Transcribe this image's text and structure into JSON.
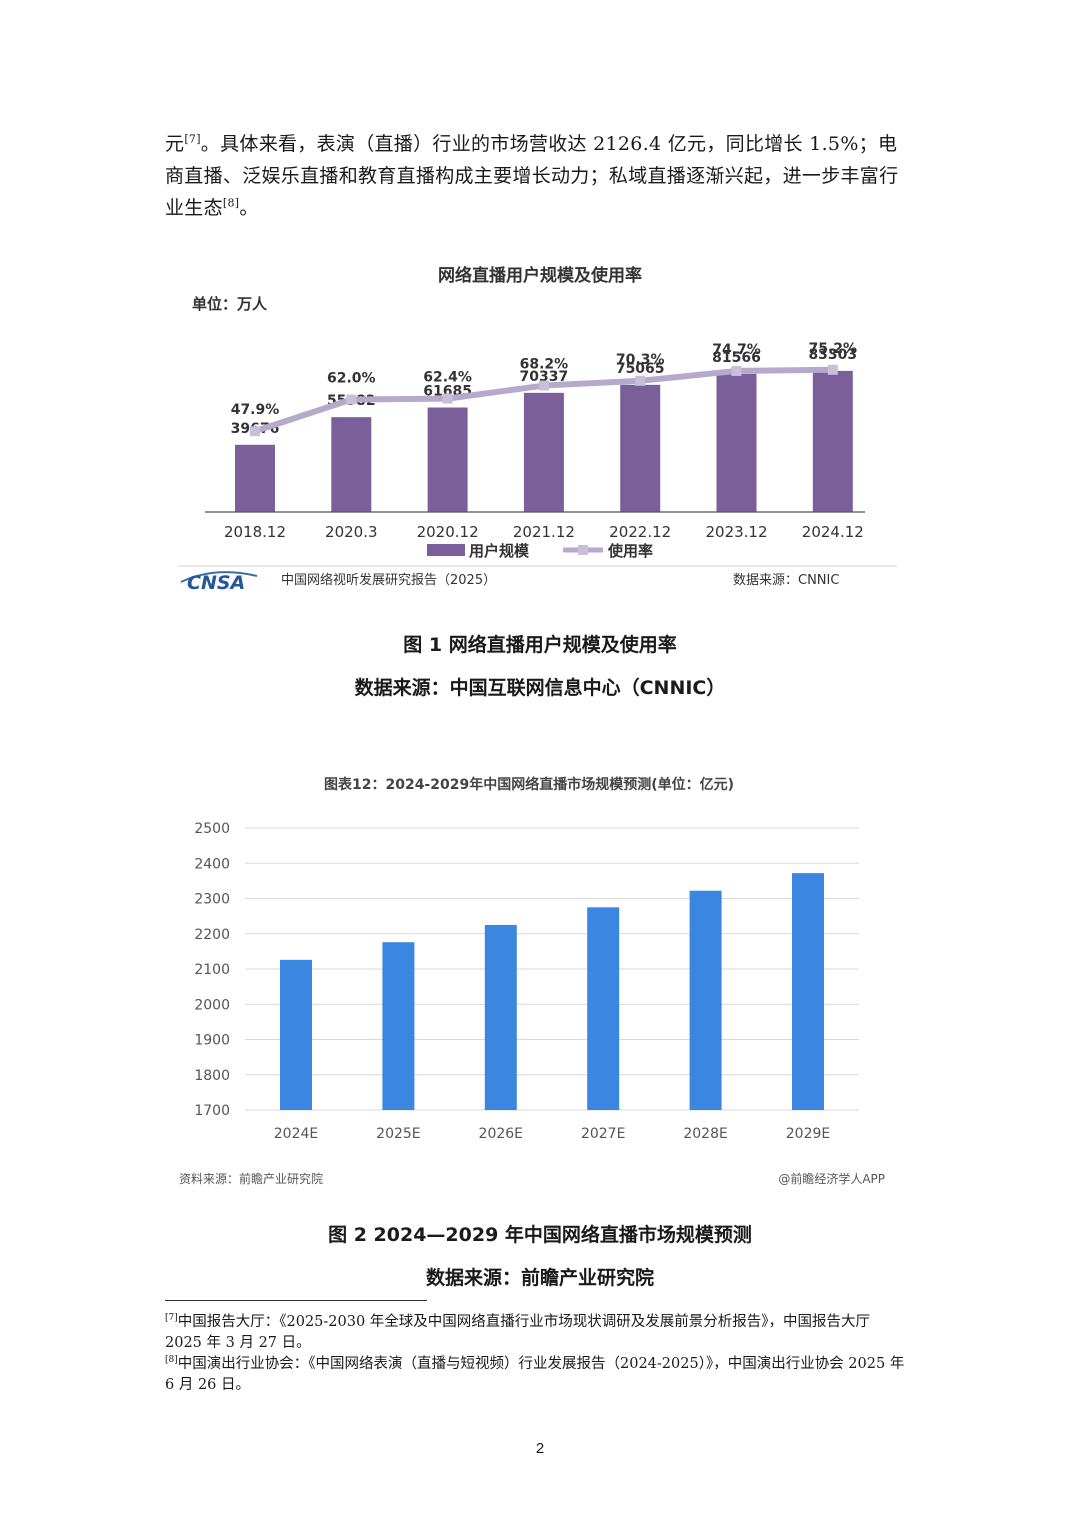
{
  "paragraph": {
    "text1": "元",
    "ref1": "[7]",
    "text2": "。具体来看，表演（直播）行业的市场营收达 2126.4 亿元，同比增长 1.5%；电商直播、泛娱乐直播和教育直播构成主要增长动力；私域直播逐渐兴起，进一步丰富行业生态",
    "ref2": "[8]",
    "text3": "。"
  },
  "chart_data": [
    {
      "type": "bar",
      "title": "网络直播用户规模及使用率",
      "unit_label": "单位：万人",
      "categories": [
        "2018.12",
        "2020.3",
        "2020.12",
        "2021.12",
        "2022.12",
        "2023.12",
        "2024.12"
      ],
      "series": [
        {
          "name": "用户规模",
          "type": "bar",
          "values": [
            39676,
            55982,
            61685,
            70337,
            75065,
            81566,
            83303
          ],
          "color": "#7b5f9a"
        },
        {
          "name": "使用率",
          "type": "line",
          "values": [
            47.9,
            62.0,
            62.4,
            68.2,
            70.3,
            74.7,
            75.2
          ],
          "labels": [
            "47.9%",
            "62.0%",
            "62.4%",
            "68.2%",
            "70.3%",
            "74.7%",
            "75.2%"
          ],
          "color": "#b6a9cc"
        }
      ],
      "legend_position": "bottom-center",
      "footer_left_logo": "CNSA",
      "footer_left": "中国网络视听发展研究报告（2025）",
      "footer_right": "数据来源：CNNIC"
    },
    {
      "type": "bar",
      "title": "图表12：2024-2029年中国网络直播市场规模预测(单位：亿元)",
      "categories": [
        "2024E",
        "2025E",
        "2026E",
        "2027E",
        "2028E",
        "2029E"
      ],
      "values": [
        2126,
        2176,
        2225,
        2275,
        2322,
        2372
      ],
      "ylim": [
        1700,
        2500
      ],
      "yticks": [
        1700,
        1800,
        1900,
        2000,
        2100,
        2200,
        2300,
        2400,
        2500
      ],
      "grid": true,
      "color": "#3b86e0",
      "footer_left": "资料来源：前瞻产业研究院",
      "footer_right": "@前瞻经济学人APP"
    }
  ],
  "captions": {
    "fig1_title": "图 1 网络直播用户规模及使用率",
    "fig1_source": "数据来源：中国互联网信息中心（CNNIC）",
    "fig2_title": "图 2 2024—2029 年中国网络直播市场规模预测",
    "fig2_source": "数据来源：前瞻产业研究院"
  },
  "footnotes": [
    {
      "ref": "[7]",
      "text": "中国报告大厅：《2025-2030 年全球及中国网络直播行业市场现状调研及发展前景分析报告》，中国报告大厅 2025 年 3 月 27 日。"
    },
    {
      "ref": "[8]",
      "text": "中国演出行业协会：《中国网络表演（直播与短视频）行业发展报告（2024-2025）》，中国演出行业协会 2025 年 6 月 26 日。"
    }
  ],
  "page_number": "2"
}
